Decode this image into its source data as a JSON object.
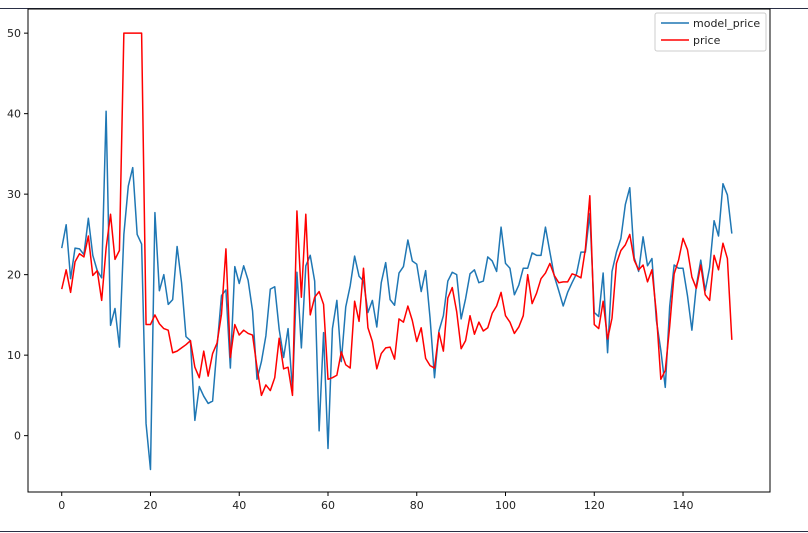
{
  "chart_data": {
    "type": "line",
    "title": "",
    "xlabel": "",
    "ylabel": "",
    "xlim": [
      -7.6,
      159.6
    ],
    "ylim": [
      -7,
      53
    ],
    "x_ticks": [
      0,
      20,
      40,
      60,
      80,
      100,
      120,
      140
    ],
    "y_ticks": [
      0,
      10,
      20,
      30,
      40,
      50
    ],
    "grid": false,
    "legend_position": "top-right",
    "x": [
      0,
      1,
      2,
      3,
      4,
      5,
      6,
      7,
      8,
      9,
      10,
      11,
      12,
      13,
      14,
      15,
      16,
      17,
      18,
      19,
      20,
      21,
      22,
      23,
      24,
      25,
      26,
      27,
      28,
      29,
      30,
      31,
      32,
      33,
      34,
      35,
      36,
      37,
      38,
      39,
      40,
      41,
      42,
      43,
      44,
      45,
      46,
      47,
      48,
      49,
      50,
      51,
      52,
      53,
      54,
      55,
      56,
      57,
      58,
      59,
      60,
      61,
      62,
      63,
      64,
      65,
      66,
      67,
      68,
      69,
      70,
      71,
      72,
      73,
      74,
      75,
      76,
      77,
      78,
      79,
      80,
      81,
      82,
      83,
      84,
      85,
      86,
      87,
      88,
      89,
      90,
      91,
      92,
      93,
      94,
      95,
      96,
      97,
      98,
      99,
      100,
      101,
      102,
      103,
      104,
      105,
      106,
      107,
      108,
      109,
      110,
      111,
      112,
      113,
      114,
      115,
      116,
      117,
      118,
      119,
      120,
      121,
      122,
      123,
      124,
      125,
      126,
      127,
      128,
      129,
      130,
      131,
      132,
      133,
      134,
      135,
      136,
      137,
      138,
      139,
      140,
      141,
      142,
      143,
      144,
      145,
      146,
      147,
      148,
      149,
      150,
      151
    ],
    "series": [
      {
        "name": "model_price",
        "color": "#1f77b4",
        "values": [
          23.3,
          26.2,
          19.5,
          23.3,
          23.2,
          22.5,
          27.0,
          22.4,
          20.5,
          19.6,
          40.3,
          13.7,
          15.8,
          11.0,
          25.0,
          31.0,
          33.3,
          25.0,
          23.8,
          1.5,
          -4.2,
          27.7,
          18.0,
          20.0,
          16.3,
          16.9,
          23.5,
          19.0,
          12.3,
          11.8,
          1.9,
          6.1,
          4.9,
          4.0,
          4.3,
          11.0,
          17.4,
          18.1,
          8.4,
          21.0,
          18.9,
          21.1,
          19.3,
          15.5,
          7.0,
          9.2,
          12.4,
          18.2,
          18.5,
          13.2,
          9.7,
          13.3,
          5.6,
          20.3,
          10.9,
          21.1,
          22.4,
          19.2,
          0.6,
          12.8,
          -1.6,
          13.3,
          16.8,
          9.2,
          16.0,
          18.6,
          22.3,
          19.8,
          19.2,
          15.3,
          16.8,
          13.5,
          19.0,
          21.5,
          16.9,
          16.2,
          20.2,
          21.0,
          24.3,
          21.7,
          21.3,
          17.9,
          20.5,
          14.6,
          7.2,
          13.0,
          14.9,
          19.2,
          20.3,
          20.0,
          14.5,
          17.0,
          20.1,
          20.6,
          19.0,
          19.2,
          22.2,
          21.7,
          20.4,
          25.9,
          21.4,
          20.8,
          17.5,
          18.7,
          20.8,
          20.8,
          22.7,
          22.4,
          22.4,
          25.9,
          22.8,
          19.8,
          18.0,
          16.1,
          17.8,
          19.0,
          20.1,
          22.8,
          22.8,
          27.6,
          15.3,
          14.8,
          20.2,
          10.3,
          20.4,
          22.8,
          24.5,
          28.7,
          30.8,
          22.1,
          20.4,
          24.7,
          21.1,
          22.0,
          14.3,
          10.6,
          6.0,
          16.1,
          21.2,
          20.8,
          20.8,
          17.4,
          13.1,
          18.6,
          21.8,
          18.0,
          20.9,
          26.7,
          24.8,
          31.3,
          29.9,
          25.1
        ]
      },
      {
        "name": "price",
        "color": "#ff0000",
        "values": [
          18.2,
          20.6,
          17.8,
          21.6,
          22.6,
          22.2,
          24.8,
          19.9,
          20.5,
          16.8,
          23.3,
          27.5,
          21.9,
          23.0,
          50.0,
          50.0,
          50.0,
          50.0,
          50.0,
          13.8,
          13.8,
          15.0,
          13.9,
          13.3,
          13.1,
          10.3,
          10.5,
          10.9,
          11.3,
          11.8,
          8.5,
          7.2,
          10.5,
          7.4,
          10.2,
          11.5,
          15.1,
          23.2,
          9.7,
          13.8,
          12.5,
          13.1,
          12.7,
          12.5,
          8.5,
          5.0,
          6.3,
          5.6,
          7.2,
          12.1,
          8.3,
          8.5,
          5.0,
          27.9,
          17.2,
          27.5,
          15.0,
          17.2,
          17.9,
          16.3,
          7.0,
          7.2,
          7.5,
          10.4,
          8.8,
          8.4,
          16.7,
          14.2,
          20.8,
          13.4,
          11.7,
          8.3,
          10.2,
          10.9,
          11.0,
          9.5,
          14.5,
          14.1,
          16.1,
          14.3,
          11.7,
          13.4,
          9.6,
          8.7,
          8.4,
          12.8,
          10.5,
          17.1,
          18.4,
          15.4,
          10.8,
          11.8,
          14.9,
          12.6,
          14.1,
          13.0,
          13.4,
          15.2,
          16.1,
          17.8,
          14.9,
          14.1,
          12.7,
          13.5,
          14.9,
          20.0,
          16.4,
          17.7,
          19.5,
          20.2,
          21.4,
          19.9,
          19.0,
          19.1,
          19.1,
          20.1,
          19.9,
          19.6,
          23.2,
          29.8,
          13.8,
          13.3,
          16.7,
          12.0,
          14.6,
          21.4,
          23.0,
          23.7,
          25.0,
          21.8,
          20.6,
          21.2,
          19.1,
          20.6,
          15.2,
          7.0,
          8.1,
          13.6,
          20.1,
          21.8,
          24.5,
          23.1,
          19.7,
          18.3,
          21.2,
          17.5,
          16.8,
          22.4,
          20.6,
          23.9,
          22.0,
          11.9
        ]
      }
    ]
  }
}
